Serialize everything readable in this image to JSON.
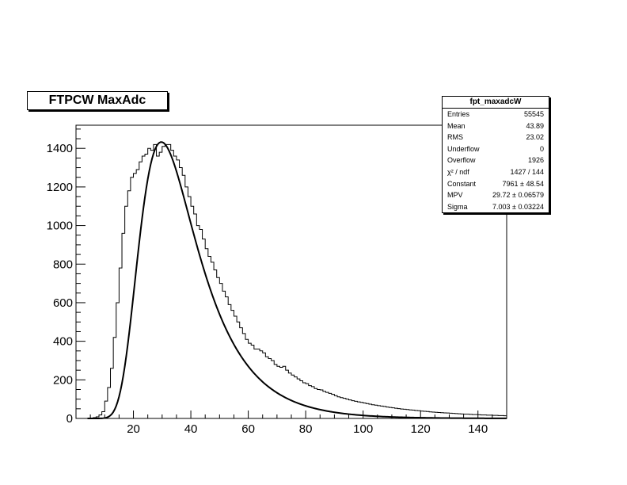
{
  "chart_data": {
    "type": "histogram",
    "title": "FTPCW MaxAdc",
    "xlim": [
      0,
      150
    ],
    "ylim": [
      0,
      1520
    ],
    "x_ticks": [
      20,
      40,
      60,
      80,
      100,
      120,
      140
    ],
    "y_ticks": [
      0,
      200,
      400,
      600,
      800,
      1000,
      1200,
      1400
    ],
    "bin_width": 1,
    "histogram": {
      "x_start": 5,
      "values": [
        2,
        4,
        8,
        18,
        35,
        90,
        160,
        260,
        420,
        600,
        780,
        960,
        1100,
        1180,
        1250,
        1270,
        1290,
        1330,
        1360,
        1370,
        1400,
        1390,
        1420,
        1360,
        1380,
        1410,
        1420,
        1420,
        1390,
        1360,
        1340,
        1300,
        1260,
        1200,
        1150,
        1100,
        1060,
        1000,
        980,
        930,
        880,
        840,
        810,
        770,
        730,
        700,
        660,
        630,
        590,
        560,
        530,
        500,
        470,
        440,
        410,
        390,
        380,
        360,
        360,
        350,
        340,
        320,
        310,
        300,
        280,
        270,
        265,
        270,
        250,
        235,
        225,
        215,
        205,
        195,
        185,
        180,
        170,
        165,
        155,
        150,
        148,
        140,
        135,
        130,
        125,
        118,
        112,
        108,
        104,
        100,
        96,
        92,
        89,
        86,
        83,
        80,
        77,
        74,
        71,
        69,
        66,
        64,
        62,
        59,
        57,
        55,
        53,
        51,
        49,
        48,
        46,
        44,
        43,
        41,
        40,
        38,
        37,
        36,
        34,
        33,
        32,
        31,
        30,
        29,
        28,
        27,
        26,
        25,
        24,
        23,
        22,
        22,
        21,
        20,
        20,
        19,
        18,
        18,
        17,
        17,
        16,
        16,
        15,
        15,
        14
      ]
    },
    "fit": {
      "function": "landau",
      "constant": 7961,
      "mpv": 29.72,
      "sigma": 7.003
    },
    "stats": {
      "name": "fpt_maxadcW",
      "rows": [
        {
          "label": "Entries",
          "value": "55545"
        },
        {
          "label": "Mean",
          "value": "43.89"
        },
        {
          "label": "RMS",
          "value": "23.02"
        },
        {
          "label": "Underflow",
          "value": "0"
        },
        {
          "label": "Overflow",
          "value": "1926"
        },
        {
          "label": "χ² / ndf",
          "value": "1427 / 144"
        },
        {
          "label": "Constant",
          "value": "7961 ± 48.54"
        },
        {
          "label": "MPV",
          "value": "29.72 ± 0.06579"
        },
        {
          "label": "Sigma",
          "value": "7.003 ± 0.03224"
        }
      ]
    }
  }
}
